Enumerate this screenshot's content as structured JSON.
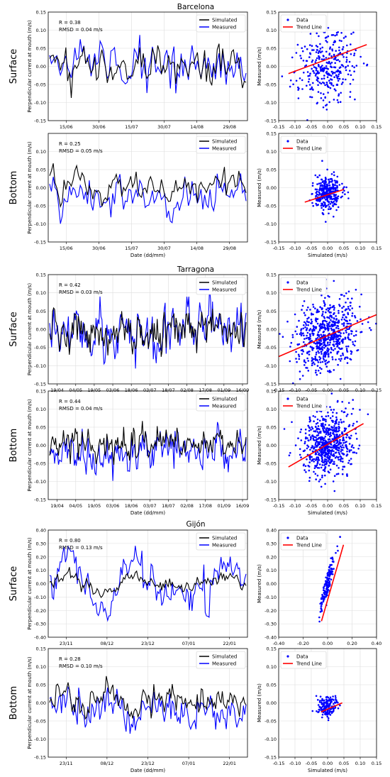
{
  "figure": {
    "sections": [
      {
        "title": "Barcelona",
        "ts_xticks": [
          "15/06",
          "30/06",
          "15/07",
          "30/07",
          "14/08",
          "29/08"
        ],
        "ts_xlabel_surface": "",
        "ts_xlabel_bottom": "Date (dd/mm)"
      },
      {
        "title": "Tarragona",
        "ts_xticks": [
          "19/04",
          "04/05",
          "19/05",
          "03/06",
          "18/06",
          "03/07",
          "18/07",
          "02/08",
          "17/08",
          "01/09",
          "16/09"
        ],
        "ts_xlabel_surface": "",
        "ts_xlabel_bottom": "Date (dd/mm)"
      },
      {
        "title": "Gijón",
        "ts_xticks": [
          "23/11",
          "08/12",
          "23/12",
          "07/01",
          "22/01"
        ],
        "ts_xlabel_surface": "",
        "ts_xlabel_bottom": "Date (dd/mm)"
      }
    ],
    "row_labels": {
      "surface": "Surface",
      "bottom": "Bottom"
    },
    "ts_ylabel": "Perpendicular current at mouth (m/s)",
    "sc_ylabel": "Measured (m/s)",
    "sc_xlabel": "Simulated (m/s)",
    "legend_ts": {
      "simulated": "Simulated",
      "measured": "Measured"
    },
    "legend_sc": {
      "data": "Data",
      "trend": "Trend Line"
    },
    "colors": {
      "simulated": "#000000",
      "measured": "#0000ff",
      "data": "#0000ff",
      "trend": "#ff0000"
    }
  },
  "chart_data": [
    {
      "type": "line",
      "site": "Barcelona",
      "depth": "Surface",
      "series": [
        {
          "name": "Simulated"
        },
        {
          "name": "Measured"
        }
      ],
      "stats": [
        "R = 0.38",
        "RMSD = 0.04 m/s"
      ],
      "ylim": [
        -0.15,
        0.15
      ],
      "yticks": [
        -0.15,
        -0.1,
        -0.05,
        0,
        0.05,
        0.1,
        0.15
      ],
      "ytick_labels": [
        "-0.15",
        "-0.10",
        "-0.05",
        "0.00",
        "0.05",
        "0.10",
        "0.15"
      ],
      "n": 110,
      "seed": 11
    },
    {
      "type": "scatter",
      "site": "Barcelona",
      "depth": "Surface",
      "xlim": [
        -0.15,
        0.15
      ],
      "ylim": [
        -0.15,
        0.15
      ],
      "xticks": [
        -0.15,
        -0.1,
        -0.05,
        0,
        0.05,
        0.1,
        0.15
      ],
      "xtick_labels": [
        "-0.15",
        "-0.10",
        "-0.05",
        "0.00",
        "0.05",
        "0.10",
        "0.15"
      ],
      "yticks": [
        -0.15,
        -0.1,
        -0.05,
        0,
        0.05,
        0.1,
        0.15
      ],
      "ytick_labels": [
        "-0.15",
        "-0.10",
        "-0.05",
        "0.00",
        "0.05",
        "0.10",
        "0.15"
      ],
      "trend": {
        "x": [
          -0.12,
          0.12
        ],
        "y": [
          -0.02,
          0.06
        ]
      },
      "show_xlabel": false,
      "n": 330,
      "sx": 0.045,
      "sy": 0.045,
      "slope": 0.35,
      "seed": 12
    },
    {
      "type": "line",
      "site": "Barcelona",
      "depth": "Bottom",
      "series": [
        {
          "name": "Simulated"
        },
        {
          "name": "Measured"
        }
      ],
      "stats": [
        "R = 0.25",
        "RMSD = 0.05 m/s"
      ],
      "ylim": [
        -0.15,
        0.15
      ],
      "yticks": [
        -0.15,
        -0.1,
        -0.05,
        0,
        0.05,
        0.1
      ],
      "ytick_labels": [
        "-0.15",
        "-0.10",
        "-0.05",
        "0.00",
        "0.05",
        "0.10"
      ],
      "n": 110,
      "seed": 13
    },
    {
      "type": "scatter",
      "site": "Barcelona",
      "depth": "Bottom",
      "xlim": [
        -0.15,
        0.15
      ],
      "ylim": [
        -0.15,
        0.15
      ],
      "xticks": [
        -0.15,
        -0.1,
        -0.05,
        0,
        0.05,
        0.1,
        0.15
      ],
      "xtick_labels": [
        "-0.15",
        "-0.10",
        "-0.05",
        "0.00",
        "0.05",
        "0.10",
        "0.15"
      ],
      "yticks": [
        -0.15,
        -0.1,
        -0.05,
        0,
        0.05,
        0.1,
        0.15
      ],
      "ytick_labels": [
        "-0.15",
        "-0.10",
        "-0.05",
        "0.00",
        "0.05",
        "0.10",
        "0.15"
      ],
      "trend": {
        "x": [
          -0.07,
          0.05
        ],
        "y": [
          -0.04,
          -0.005
        ]
      },
      "show_xlabel": true,
      "n": 330,
      "sx": 0.02,
      "sy": 0.025,
      "slope": 0.3,
      "cy": -0.015,
      "seed": 14
    },
    {
      "type": "line",
      "site": "Tarragona",
      "depth": "Surface",
      "series": [
        {
          "name": "Simulated"
        },
        {
          "name": "Measured"
        }
      ],
      "stats": [
        "R = 0.42",
        "RMSD = 0.03 m/s"
      ],
      "ylim": [
        -0.15,
        0.15
      ],
      "yticks": [
        -0.15,
        -0.1,
        -0.05,
        0,
        0.05,
        0.1,
        0.15
      ],
      "ytick_labels": [
        "-0.15",
        "-0.10",
        "-0.05",
        "0.00",
        "0.05",
        "0.10",
        "0.15"
      ],
      "n": 200,
      "seed": 21
    },
    {
      "type": "scatter",
      "site": "Tarragona",
      "depth": "Surface",
      "xlim": [
        -0.15,
        0.15
      ],
      "ylim": [
        -0.15,
        0.15
      ],
      "xticks": [
        -0.15,
        -0.1,
        -0.05,
        0,
        0.05,
        0.1,
        0.15
      ],
      "xtick_labels": [
        "-0.15",
        "-0.10",
        "-0.05",
        "0.00",
        "0.05",
        "0.10",
        "0.15"
      ],
      "yticks": [
        -0.15,
        -0.1,
        -0.05,
        0,
        0.05,
        0.1,
        0.15
      ],
      "ytick_labels": [
        "-0.15",
        "-0.10",
        "-0.05",
        "0.00",
        "0.05",
        "0.10",
        "0.15"
      ],
      "trend": {
        "x": [
          -0.15,
          0.15
        ],
        "y": [
          -0.075,
          0.04
        ]
      },
      "show_xlabel": false,
      "n": 650,
      "sx": 0.05,
      "sy": 0.045,
      "slope": 0.4,
      "cy": -0.015,
      "seed": 22
    },
    {
      "type": "line",
      "site": "Tarragona",
      "depth": "Bottom",
      "series": [
        {
          "name": "Simulated"
        },
        {
          "name": "Measured"
        }
      ],
      "stats": [
        "R = 0.44",
        "RMSD = 0.04 m/s"
      ],
      "ylim": [
        -0.15,
        0.15
      ],
      "yticks": [
        -0.15,
        -0.1,
        -0.05,
        0,
        0.05,
        0.1,
        0.15
      ],
      "ytick_labels": [
        "-0.15",
        "-0.10",
        "-0.05",
        "0.00",
        "0.05",
        "0.10",
        "0.15"
      ],
      "n": 200,
      "seed": 23
    },
    {
      "type": "scatter",
      "site": "Tarragona",
      "depth": "Bottom",
      "xlim": [
        -0.15,
        0.15
      ],
      "ylim": [
        -0.15,
        0.15
      ],
      "xticks": [
        -0.15,
        -0.1,
        -0.05,
        0,
        0.05,
        0.1,
        0.15
      ],
      "xtick_labels": [
        "-0.15",
        "-0.10",
        "-0.05",
        "0.00",
        "0.05",
        "0.10",
        "0.15"
      ],
      "yticks": [
        -0.15,
        -0.1,
        -0.05,
        0,
        0.05,
        0.1,
        0.15
      ],
      "ytick_labels": [
        "-0.15",
        "-0.10",
        "-0.05",
        "0.00",
        "0.05",
        "0.10",
        "0.15"
      ],
      "trend": {
        "x": [
          -0.12,
          0.11
        ],
        "y": [
          -0.06,
          0.06
        ]
      },
      "show_xlabel": true,
      "n": 650,
      "sx": 0.04,
      "sy": 0.045,
      "slope": 0.45,
      "cy": 0.005,
      "seed": 24
    },
    {
      "type": "line",
      "site": "Gijón",
      "depth": "Surface",
      "series": [
        {
          "name": "Simulated"
        },
        {
          "name": "Measured"
        }
      ],
      "stats": [
        "R = 0.80",
        "RMSD = 0.13 m/s"
      ],
      "ylim": [
        -0.4,
        0.4
      ],
      "yticks": [
        -0.4,
        -0.3,
        -0.2,
        -0.1,
        0,
        0.1,
        0.2,
        0.3,
        0.4
      ],
      "ytick_labels": [
        "-0.40",
        "-0.30",
        "-0.20",
        "-0.10",
        "0.00",
        "0.10",
        "0.20",
        "0.30",
        "0.40"
      ],
      "n": 150,
      "seed": 31
    },
    {
      "type": "scatter",
      "site": "Gijón",
      "depth": "Surface",
      "xlim": [
        -0.4,
        0.4
      ],
      "ylim": [
        -0.4,
        0.4
      ],
      "xticks": [
        -0.4,
        -0.2,
        0,
        0.2,
        0.4
      ],
      "xtick_labels": [
        "-0.40",
        "-0.20",
        "0.00",
        "0.20",
        "0.40"
      ],
      "yticks": [
        -0.4,
        -0.3,
        -0.2,
        -0.1,
        0,
        0.1,
        0.2,
        0.3,
        0.4
      ],
      "ytick_labels": [
        "-0.40",
        "-0.30",
        "-0.20",
        "-0.10",
        "0.00",
        "0.10",
        "0.20",
        "0.30",
        "0.40"
      ],
      "trend": {
        "x": [
          -0.05,
          0.13
        ],
        "y": [
          -0.28,
          0.29
        ]
      },
      "show_xlabel": false,
      "n": 160,
      "sx": 0.035,
      "sy": 0.12,
      "slope": 3.0,
      "cy": 0.0,
      "seed": 32
    },
    {
      "type": "line",
      "site": "Gijón",
      "depth": "Bottom",
      "series": [
        {
          "name": "Simulated"
        },
        {
          "name": "Measured"
        }
      ],
      "stats": [
        "R = 0.28",
        "RMSD = 0.10 m/s"
      ],
      "ylim": [
        -0.15,
        0.15
      ],
      "yticks": [
        -0.15,
        -0.1,
        -0.05,
        0,
        0.05,
        0.1,
        0.15
      ],
      "ytick_labels": [
        "-0.15",
        "-0.10",
        "-0.05",
        "0.00",
        "0.05",
        "0.10",
        "0.15"
      ],
      "n": 150,
      "seed": 33
    },
    {
      "type": "scatter",
      "site": "Gijón",
      "depth": "Bottom",
      "xlim": [
        -0.15,
        0.15
      ],
      "ylim": [
        -0.15,
        0.15
      ],
      "xticks": [
        -0.15,
        -0.1,
        -0.05,
        0,
        0.05,
        0.1,
        0.15
      ],
      "xtick_labels": [
        "-0.15",
        "-0.10",
        "-0.05",
        "0.00",
        "0.05",
        "0.10",
        "0.15"
      ],
      "yticks": [
        -0.15,
        -0.1,
        -0.05,
        0,
        0.05,
        0.1,
        0.15
      ],
      "ytick_labels": [
        "-0.15",
        "-0.10",
        "-0.05",
        "0.00",
        "0.05",
        "0.10",
        "0.15"
      ],
      "trend": {
        "x": [
          -0.02,
          0.045
        ],
        "y": [
          -0.025,
          0.0
        ]
      },
      "show_xlabel": true,
      "n": 160,
      "sx": 0.015,
      "sy": 0.015,
      "slope": 0.3,
      "cy": -0.01,
      "seed": 34
    }
  ]
}
